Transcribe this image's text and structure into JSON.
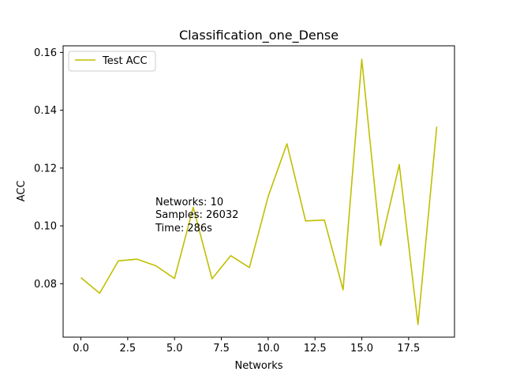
{
  "chart_data": {
    "type": "line",
    "title": "Classification_one_Dense",
    "xlabel": "Networks",
    "ylabel": "ACC",
    "xlim": [
      -0.95,
      19.95
    ],
    "ylim": [
      0.0615,
      0.1623
    ],
    "x_ticks": [
      0,
      2.5,
      5,
      7.5,
      10,
      12.5,
      15,
      17.5
    ],
    "x_tick_labels": [
      "0.0",
      "2.5",
      "5.0",
      "7.5",
      "10.0",
      "12.5",
      "15.0",
      "17.5"
    ],
    "y_ticks": [
      0.08,
      0.1,
      0.12,
      0.14,
      0.16
    ],
    "y_tick_labels": [
      "0.08",
      "0.10",
      "0.12",
      "0.14",
      "0.16"
    ],
    "grid": false,
    "legend_position": "top-left",
    "series": [
      {
        "name": "Test ACC",
        "color": "#bfbf00",
        "x": [
          0,
          1,
          2,
          3,
          4,
          5,
          6,
          7,
          8,
          9,
          10,
          11,
          12,
          13,
          14,
          15,
          16,
          17,
          18,
          19
        ],
        "values": [
          0.0821,
          0.0767,
          0.0879,
          0.0885,
          0.0862,
          0.0818,
          0.1064,
          0.0817,
          0.0897,
          0.0856,
          0.1102,
          0.1284,
          0.1017,
          0.102,
          0.0779,
          0.1576,
          0.0932,
          0.1212,
          0.0659,
          0.1343
        ]
      }
    ],
    "annotations": [
      "Networks: 10",
      "Samples: 26032",
      "Time: 286s"
    ]
  }
}
